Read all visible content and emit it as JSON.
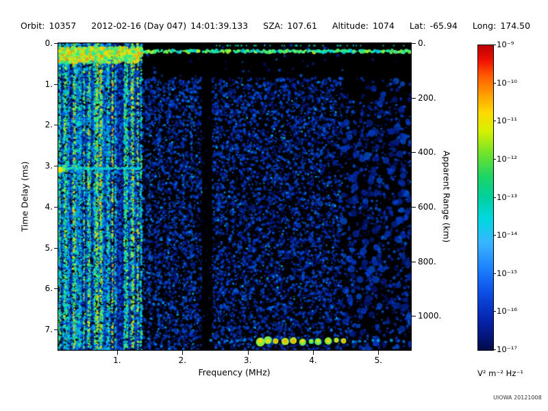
{
  "header": {
    "orbit_label": "Orbit:",
    "orbit": "10357",
    "date": "2012-02-16 (Day 047)",
    "time": "14:01:39.133",
    "sza_label": "SZA:",
    "sza": "107.61",
    "altitude_label": "Altitude:",
    "altitude": "1074",
    "lat_label": "Lat:",
    "lat": "-65.94",
    "long_label": "Long:",
    "long": "174.50"
  },
  "chart_data": {
    "type": "heatmap",
    "title": "",
    "xlabel": "Frequency (MHz)",
    "ylabel": "Time Delay (ms)",
    "y2label": "Apparent Range (km)",
    "xlim": [
      0.1,
      5.5
    ],
    "ylim": [
      0,
      7.5
    ],
    "y2lim": [
      0,
      1125
    ],
    "x_ticks": [
      "1.",
      "2.",
      "3.",
      "4.",
      "5."
    ],
    "x_tick_values": [
      1,
      2,
      3,
      4,
      5
    ],
    "y_ticks": [
      "0.",
      "1.",
      "2.",
      "3.",
      "4.",
      "5.",
      "6.",
      "7."
    ],
    "y_tick_values": [
      0,
      1,
      2,
      3,
      4,
      5,
      6,
      7
    ],
    "y2_ticks": [
      "0.",
      "200.",
      "400.",
      "600.",
      "800.",
      "1000."
    ],
    "y2_tick_values": [
      0,
      200,
      400,
      600,
      800,
      1000
    ],
    "colorbar": {
      "unit": "V² m⁻² Hz⁻¹",
      "tick_labels": [
        "10⁻⁹",
        "10⁻¹⁰",
        "10⁻¹¹",
        "10⁻¹²",
        "10⁻¹³",
        "10⁻¹⁴",
        "10⁻¹⁵",
        "10⁻¹⁶",
        "10⁻¹⁷"
      ],
      "scale": "log10",
      "range": [
        1e-17,
        1e-09
      ],
      "stops": [
        {
          "p": 0.0,
          "c": "#b80000"
        },
        {
          "p": 0.05,
          "c": "#f01000"
        },
        {
          "p": 0.1,
          "c": "#ff5a00"
        },
        {
          "p": 0.16,
          "c": "#ff9c00"
        },
        {
          "p": 0.22,
          "c": "#ffd800"
        },
        {
          "p": 0.28,
          "c": "#d8f000"
        },
        {
          "p": 0.35,
          "c": "#78e428"
        },
        {
          "p": 0.43,
          "c": "#1ed464"
        },
        {
          "p": 0.5,
          "c": "#00d0a0"
        },
        {
          "p": 0.57,
          "c": "#00d8e0"
        },
        {
          "p": 0.65,
          "c": "#38b4ff"
        },
        {
          "p": 0.73,
          "c": "#1e82ff"
        },
        {
          "p": 0.81,
          "c": "#0c50e6"
        },
        {
          "p": 0.89,
          "c": "#0628b4"
        },
        {
          "p": 0.96,
          "c": "#031478"
        },
        {
          "p": 1.0,
          "c": "#020a46"
        }
      ]
    },
    "features": [
      "strong surface reflection band at ~0.2 ms across all frequencies, brightest below 1.4 MHz",
      "dense vertical plasma-oscillation striations (cyan/green) below ~1.4 MHz spanning all delays",
      "horizontal ionospheric echo line at ~3.1 ms for f < 1.4 MHz with bright blob at lowest frequency",
      "quiet black vertical gap near 2.3-2.45 MHz",
      "bright green surface-echo blobs at ~7.3 ms between ~3.2 and 4.6 MHz, fading cyan to either side",
      "diffuse blue speckle background noise, darker and sparser above ~4.5 MHz and just below the surface band"
    ],
    "render": {
      "seed": 20121008,
      "bg_count": 14000,
      "mid_speckle_count": 520,
      "sparse_count": 260,
      "stripe_fmax": 1.38,
      "stripe_cols": 56,
      "mid_stripes": [
        1.5,
        1.64,
        1.8,
        2.02,
        2.14,
        2.6,
        2.78,
        2.95
      ],
      "surface_t": 0.2,
      "iono_t": 3.06,
      "gap_f": [
        2.3,
        2.45
      ],
      "echo_t": 7.28,
      "echo_f": [
        3.18,
        4.58
      ],
      "echo_faint_f": [
        [
          2.45,
          3.15
        ],
        [
          4.6,
          5.4
        ]
      ],
      "sparse_fmin": 4.45
    }
  },
  "credit": "UIOWA 20121008"
}
